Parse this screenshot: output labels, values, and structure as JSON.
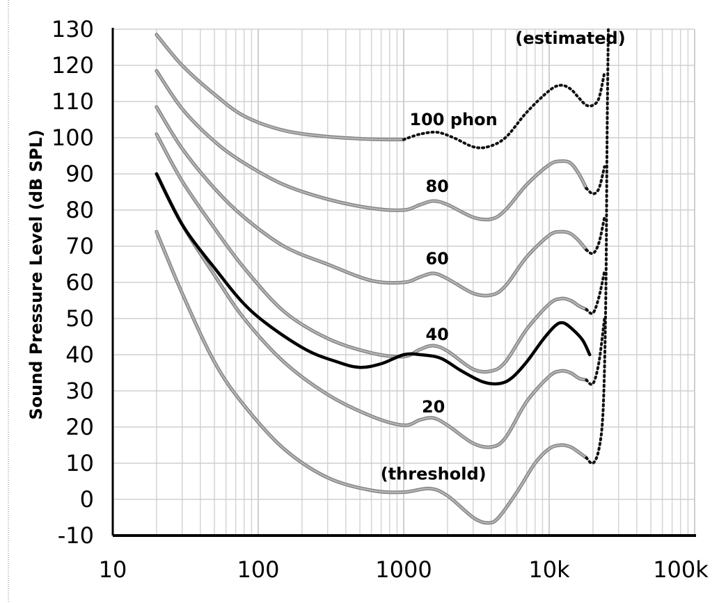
{
  "chart_data": {
    "type": "line",
    "title": "",
    "xlabel": "",
    "ylabel": "Sound Pressure Level (dB SPL)",
    "xscale": "log",
    "xlim": [
      10,
      100000
    ],
    "ylim": [
      -10,
      130
    ],
    "grid": true,
    "x_ticks": [
      {
        "value": 10,
        "label": "10"
      },
      {
        "value": 100,
        "label": "100"
      },
      {
        "value": 1000,
        "label": "1000"
      },
      {
        "value": 10000,
        "label": "10k"
      },
      {
        "value": 100000,
        "label": "100k"
      }
    ],
    "y_ticks": [
      {
        "value": 130,
        "label": "130"
      },
      {
        "value": 120,
        "label": "120"
      },
      {
        "value": 110,
        "label": "110"
      },
      {
        "value": 100,
        "label": "100"
      },
      {
        "value": 90,
        "label": "90"
      },
      {
        "value": 80,
        "label": "80"
      },
      {
        "value": 70,
        "label": "70"
      },
      {
        "value": 60,
        "label": "60"
      },
      {
        "value": 50,
        "label": "50"
      },
      {
        "value": 40,
        "label": "40"
      },
      {
        "value": 30,
        "label": "30"
      },
      {
        "value": 20,
        "label": "20"
      },
      {
        "value": 10,
        "label": "10"
      },
      {
        "value": 0,
        "label": "0"
      },
      {
        "value": -10,
        "label": "-10"
      }
    ],
    "series": [
      {
        "label": "(threshold)",
        "color": "#9a9a9a",
        "points": [
          [
            20,
            74
          ],
          [
            30,
            57
          ],
          [
            50,
            38
          ],
          [
            80,
            26
          ],
          [
            150,
            14
          ],
          [
            300,
            6
          ],
          [
            600,
            2.5
          ],
          [
            1000,
            2
          ],
          [
            1500,
            3
          ],
          [
            2000,
            1
          ],
          [
            3000,
            -5
          ],
          [
            3800,
            -6.5
          ],
          [
            4500,
            -5
          ],
          [
            6000,
            2
          ],
          [
            8000,
            10
          ],
          [
            10000,
            14
          ],
          [
            12000,
            15
          ],
          [
            14000,
            14.5
          ],
          [
            16000,
            13
          ],
          [
            18000,
            11.5
          ]
        ],
        "estimated": [
          [
            18000,
            11.5
          ],
          [
            20000,
            10
          ],
          [
            22000,
            14
          ],
          [
            23500,
            25
          ],
          [
            24500,
            55
          ],
          [
            25000,
            100
          ],
          [
            25500,
            130
          ]
        ]
      },
      {
        "label": "20",
        "color": "#9a9a9a",
        "points": [
          [
            20,
            90
          ],
          [
            30,
            76
          ],
          [
            50,
            62
          ],
          [
            80,
            50
          ],
          [
            150,
            38
          ],
          [
            300,
            29
          ],
          [
            600,
            23
          ],
          [
            1000,
            20.5
          ],
          [
            1300,
            22
          ],
          [
            1600,
            22.5
          ],
          [
            2000,
            20.5
          ],
          [
            3000,
            15.5
          ],
          [
            4000,
            14.5
          ],
          [
            5000,
            17
          ],
          [
            7000,
            27
          ],
          [
            10000,
            34
          ],
          [
            12000,
            35.5
          ],
          [
            14000,
            35
          ],
          [
            16000,
            33.5
          ],
          [
            18000,
            33
          ]
        ],
        "estimated": [
          [
            18000,
            33
          ],
          [
            20000,
            32
          ],
          [
            22000,
            38
          ],
          [
            24000,
            50
          ]
        ]
      },
      {
        "label": "40",
        "color": "#9a9a9a",
        "points": [
          [
            20,
            101
          ],
          [
            30,
            88
          ],
          [
            50,
            75
          ],
          [
            80,
            64
          ],
          [
            150,
            52
          ],
          [
            300,
            44.5
          ],
          [
            600,
            40.5
          ],
          [
            1000,
            39.5
          ],
          [
            1300,
            41.5
          ],
          [
            1600,
            42.5
          ],
          [
            2000,
            41
          ],
          [
            3000,
            36
          ],
          [
            4000,
            35.5
          ],
          [
            5000,
            38
          ],
          [
            7000,
            47
          ],
          [
            10000,
            54
          ],
          [
            12000,
            55.5
          ],
          [
            14000,
            55
          ],
          [
            16000,
            53.5
          ],
          [
            18000,
            52.5
          ]
        ],
        "estimated": [
          [
            18000,
            52.5
          ],
          [
            20000,
            51.5
          ],
          [
            22000,
            56
          ],
          [
            24000,
            63
          ]
        ]
      },
      {
        "label": "60",
        "color": "#9a9a9a",
        "points": [
          [
            20,
            108.5
          ],
          [
            30,
            97
          ],
          [
            50,
            86
          ],
          [
            80,
            78
          ],
          [
            150,
            70
          ],
          [
            300,
            65
          ],
          [
            600,
            60.5
          ],
          [
            1000,
            60
          ],
          [
            1300,
            61.5
          ],
          [
            1600,
            62.5
          ],
          [
            2000,
            61
          ],
          [
            3000,
            57
          ],
          [
            4000,
            56.5
          ],
          [
            5000,
            59
          ],
          [
            7000,
            67
          ],
          [
            10000,
            73
          ],
          [
            12000,
            74
          ],
          [
            14000,
            73.5
          ],
          [
            16000,
            71.5
          ],
          [
            18000,
            69
          ]
        ],
        "estimated": [
          [
            18000,
            69
          ],
          [
            20000,
            68
          ],
          [
            22000,
            71
          ],
          [
            24000,
            78
          ]
        ]
      },
      {
        "label": "80",
        "color": "#9a9a9a",
        "points": [
          [
            20,
            118.5
          ],
          [
            30,
            108
          ],
          [
            50,
            99
          ],
          [
            80,
            93
          ],
          [
            150,
            87
          ],
          [
            300,
            83
          ],
          [
            600,
            80.5
          ],
          [
            1000,
            80
          ],
          [
            1300,
            81.5
          ],
          [
            1600,
            82.5
          ],
          [
            2000,
            81.5
          ],
          [
            3000,
            78
          ],
          [
            4000,
            77.5
          ],
          [
            5000,
            80
          ],
          [
            7000,
            87
          ],
          [
            10000,
            92.5
          ],
          [
            12000,
            93.5
          ],
          [
            14000,
            93
          ],
          [
            16000,
            90
          ],
          [
            18000,
            86
          ]
        ],
        "estimated": [
          [
            18000,
            86
          ],
          [
            20000,
            84.5
          ],
          [
            22000,
            86
          ],
          [
            24000,
            92
          ]
        ]
      },
      {
        "label": "100 phon",
        "color": "#9a9a9a",
        "points": [
          [
            20,
            128.5
          ],
          [
            30,
            120
          ],
          [
            50,
            112
          ],
          [
            80,
            106
          ],
          [
            150,
            102
          ],
          [
            300,
            100.3
          ],
          [
            600,
            99.6
          ],
          [
            1000,
            99.5
          ]
        ],
        "estimated": [
          [
            1000,
            99.5
          ],
          [
            1300,
            101
          ],
          [
            1700,
            101.5
          ],
          [
            2200,
            100
          ],
          [
            3000,
            97.5
          ],
          [
            3800,
            97.5
          ],
          [
            5000,
            100
          ],
          [
            7000,
            107
          ],
          [
            10000,
            113
          ],
          [
            12000,
            114.5
          ],
          [
            14000,
            113.5
          ],
          [
            16000,
            111
          ],
          [
            18000,
            109
          ],
          [
            20000,
            109
          ],
          [
            22000,
            111
          ],
          [
            24000,
            118
          ]
        ]
      },
      {
        "label": "",
        "color": "#000000",
        "points": [
          [
            20,
            90
          ],
          [
            30,
            76
          ],
          [
            50,
            64
          ],
          [
            90,
            52
          ],
          [
            200,
            42
          ],
          [
            350,
            38
          ],
          [
            500,
            36.5
          ],
          [
            700,
            37.5
          ],
          [
            1000,
            40
          ],
          [
            1300,
            40
          ],
          [
            1800,
            39
          ],
          [
            2500,
            35.5
          ],
          [
            3500,
            32.5
          ],
          [
            4500,
            32
          ],
          [
            5500,
            33.5
          ],
          [
            7000,
            38
          ],
          [
            9000,
            44
          ],
          [
            11000,
            48
          ],
          [
            12500,
            48.8
          ],
          [
            14500,
            47
          ],
          [
            17000,
            44
          ],
          [
            19000,
            40
          ]
        ]
      }
    ],
    "annotations": [
      {
        "text": "(estimated)",
        "x": 14000,
        "y": 126
      },
      {
        "text": "100 phon",
        "x": 2200,
        "y": 103.5
      },
      {
        "text": "80",
        "x": 1700,
        "y": 85
      },
      {
        "text": "60",
        "x": 1700,
        "y": 65
      },
      {
        "text": "40",
        "x": 1700,
        "y": 44
      },
      {
        "text": "20",
        "x": 1600,
        "y": 24
      },
      {
        "text": "(threshold)",
        "x": 1600,
        "y": 5.5
      }
    ]
  }
}
